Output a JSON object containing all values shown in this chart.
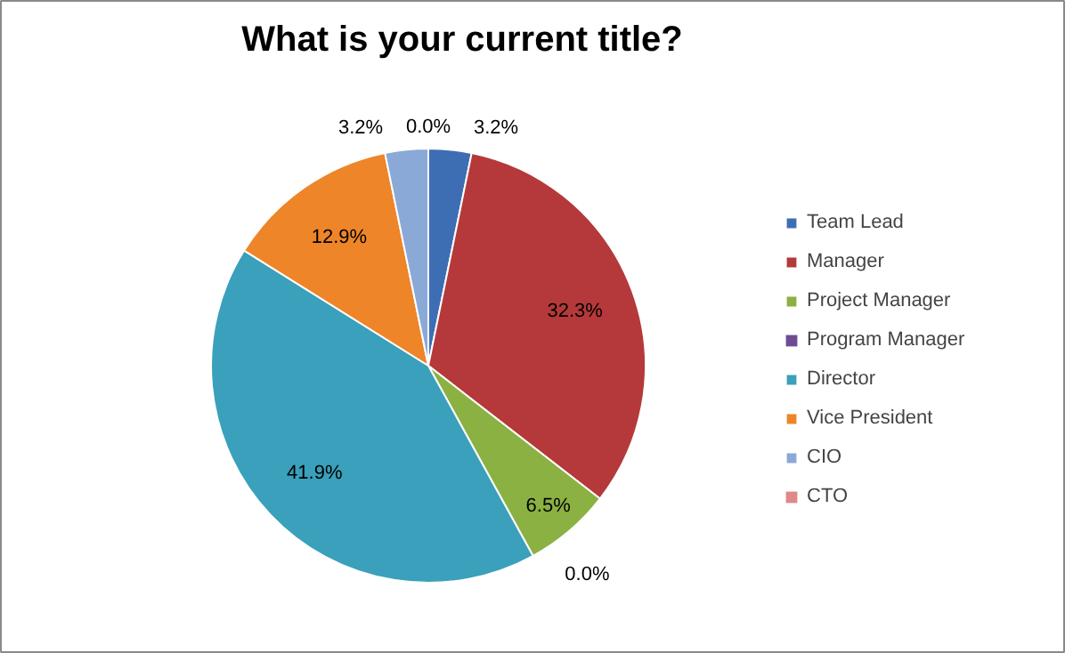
{
  "chart_data": {
    "type": "pie",
    "title": "What is your current title?",
    "categories": [
      "Team Lead",
      "Manager",
      "Project Manager",
      "Program Manager",
      "Director",
      "Vice President",
      "CIO",
      "CTO"
    ],
    "values": [
      3.2,
      32.3,
      6.5,
      0.0,
      41.9,
      12.9,
      3.2,
      0.0
    ],
    "value_labels": [
      "3.2%",
      "32.3%",
      "6.5%",
      "0.0%",
      "41.9%",
      "12.9%",
      "3.2%",
      "0.0%"
    ],
    "colors": [
      "#3d6eb4",
      "#b5393a",
      "#8bb142",
      "#6e4c93",
      "#3aa0bb",
      "#ee8529",
      "#8aa9d6",
      "#dd8a88"
    ],
    "legend": "right"
  }
}
